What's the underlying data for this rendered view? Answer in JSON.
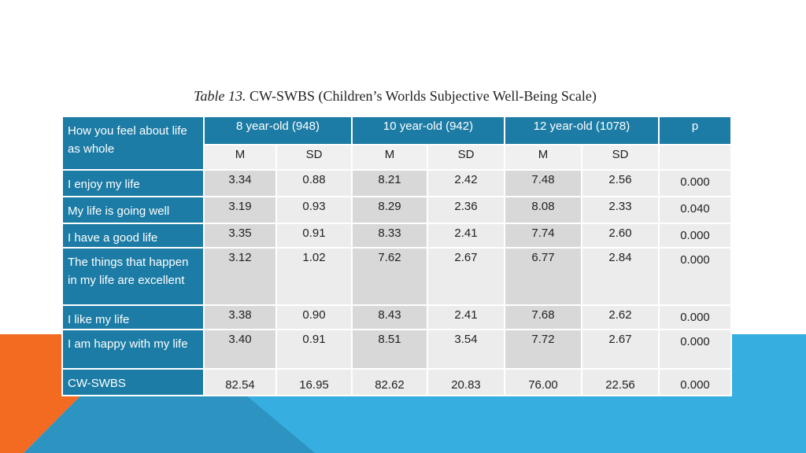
{
  "caption": {
    "label": "Table 13.",
    "text": " CW-SWBS (Children’s Worlds Subjective Well-Being Scale)"
  },
  "table": {
    "corner_header": "How you feel about life as whole",
    "groups": [
      "8 year-old (948)",
      "10 year-old (942)",
      "12 year-old (1078)"
    ],
    "p_header": "p",
    "subheaders": [
      "M",
      "SD",
      "M",
      "SD",
      "M",
      "SD"
    ],
    "rows": [
      {
        "label": "I enjoy my life",
        "values": [
          "3.34",
          "0.88",
          "8.21",
          "2.42",
          "7.48",
          "2.56"
        ],
        "p": "0.000"
      },
      {
        "label": "My life is going well",
        "values": [
          "3.19",
          "0.93",
          "8.29",
          "2.36",
          "8.08",
          "2.33"
        ],
        "p": "0.040"
      },
      {
        "label": "I have a good life",
        "values": [
          "3.35",
          "0.91",
          "8.33",
          "2.41",
          "7.74",
          "2.60"
        ],
        "p": "0.000"
      },
      {
        "label": "The things that happen in my life are excellent",
        "values": [
          "3.12",
          "1.02",
          "7.62",
          "2.67",
          "6.77",
          "2.84"
        ],
        "p": "0.000"
      },
      {
        "label": "I like my life",
        "values": [
          "3.38",
          "0.90",
          "8.43",
          "2.41",
          "7.68",
          "2.62"
        ],
        "p": "0.000"
      },
      {
        "label": "I am happy with my life",
        "values": [
          "3.40",
          "0.91",
          "8.51",
          "3.54",
          "7.72",
          "2.67"
        ],
        "p": "0.000"
      },
      {
        "label": "CW-SWBS",
        "values": [
          "82.54",
          "16.95",
          "82.62",
          "20.83",
          "76.00",
          "22.56"
        ],
        "p": "0.000"
      }
    ]
  },
  "colors": {
    "header_blue": "#1c7ca5",
    "cell_gray": "#d8d8d8",
    "light_gray": "#ececec",
    "accent_orange": "#f26b21",
    "accent_light_blue": "#36aee0",
    "accent_mid_blue": "#2d93c1"
  }
}
